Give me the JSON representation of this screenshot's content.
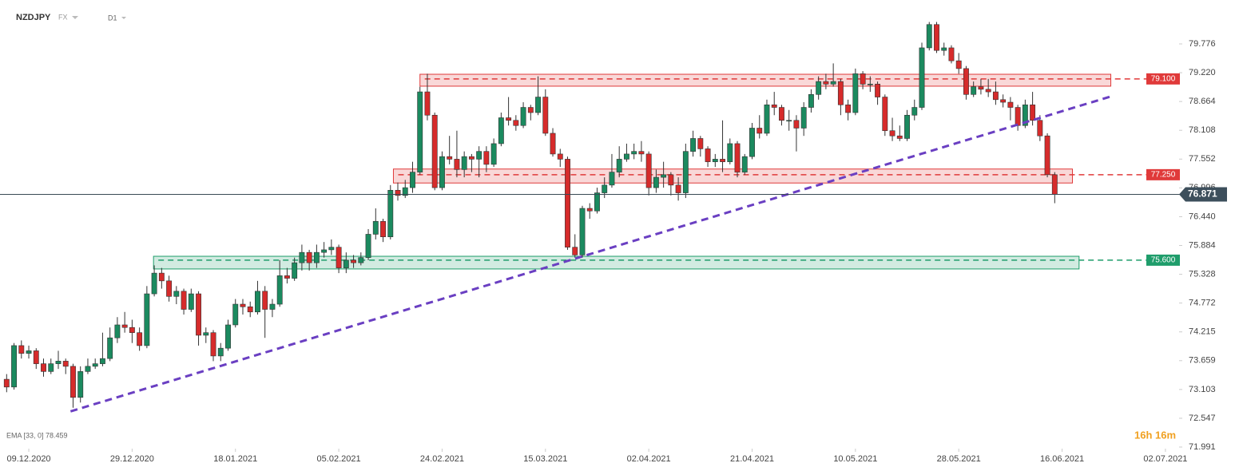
{
  "header": {
    "symbol": "NZDJPY",
    "market": "FX",
    "timeframe": "D1",
    "indicator": "EMA [33, 0] 78.459",
    "countdown": "16h 16m"
  },
  "chart_data": {
    "type": "candlestick",
    "series": [
      {
        "name": "NZDJPY",
        "up_color": "#1b8a5f",
        "down_color": "#d62b2b",
        "values": [
          [
            73.3,
            73.4,
            73.05,
            73.15
          ],
          [
            73.15,
            74.0,
            73.1,
            73.95
          ],
          [
            73.95,
            74.05,
            73.7,
            73.8
          ],
          [
            73.8,
            73.95,
            73.7,
            73.85
          ],
          [
            73.85,
            73.9,
            73.5,
            73.6
          ],
          [
            73.6,
            73.7,
            73.35,
            73.45
          ],
          [
            73.45,
            73.7,
            73.4,
            73.6
          ],
          [
            73.6,
            73.85,
            73.5,
            73.65
          ],
          [
            73.65,
            73.7,
            73.4,
            73.55
          ],
          [
            73.55,
            73.6,
            72.75,
            72.95
          ],
          [
            72.95,
            73.55,
            72.85,
            73.45
          ],
          [
            73.45,
            73.7,
            73.4,
            73.55
          ],
          [
            73.55,
            73.7,
            73.5,
            73.6
          ],
          [
            73.6,
            74.2,
            73.55,
            73.7
          ],
          [
            73.7,
            74.3,
            73.65,
            74.1
          ],
          [
            74.1,
            74.5,
            74.0,
            74.35
          ],
          [
            74.35,
            74.6,
            74.2,
            74.3
          ],
          [
            74.3,
            74.45,
            74.0,
            74.2
          ],
          [
            74.2,
            74.3,
            73.85,
            73.95
          ],
          [
            73.95,
            75.1,
            73.9,
            74.95
          ],
          [
            74.95,
            75.5,
            74.9,
            75.35
          ],
          [
            75.35,
            75.45,
            75.05,
            75.2
          ],
          [
            75.2,
            75.3,
            74.8,
            74.9
          ],
          [
            74.9,
            75.1,
            74.75,
            75.0
          ],
          [
            75.0,
            75.05,
            74.55,
            74.65
          ],
          [
            74.65,
            75.05,
            74.6,
            74.95
          ],
          [
            74.95,
            75.0,
            73.95,
            74.15
          ],
          [
            74.15,
            74.3,
            74.0,
            74.2
          ],
          [
            74.2,
            74.25,
            73.65,
            73.75
          ],
          [
            73.75,
            74.0,
            73.65,
            73.9
          ],
          [
            73.9,
            74.45,
            73.85,
            74.35
          ],
          [
            74.35,
            74.85,
            74.3,
            74.75
          ],
          [
            74.75,
            74.85,
            74.55,
            74.7
          ],
          [
            74.7,
            74.8,
            74.5,
            74.6
          ],
          [
            74.6,
            75.2,
            74.55,
            75.0
          ],
          [
            75.0,
            75.1,
            74.1,
            74.65
          ],
          [
            74.65,
            74.85,
            74.5,
            74.75
          ],
          [
            74.75,
            75.6,
            74.7,
            75.3
          ],
          [
            75.3,
            75.45,
            75.15,
            75.25
          ],
          [
            75.25,
            75.65,
            75.2,
            75.55
          ],
          [
            75.55,
            75.9,
            75.4,
            75.75
          ],
          [
            75.75,
            75.8,
            75.4,
            75.55
          ],
          [
            75.55,
            75.9,
            75.45,
            75.75
          ],
          [
            75.75,
            75.95,
            75.65,
            75.8
          ],
          [
            75.8,
            76.0,
            75.7,
            75.85
          ],
          [
            75.85,
            75.9,
            75.35,
            75.45
          ],
          [
            75.45,
            75.75,
            75.35,
            75.6
          ],
          [
            75.6,
            75.7,
            75.45,
            75.55
          ],
          [
            75.55,
            75.75,
            75.5,
            75.65
          ],
          [
            75.65,
            76.2,
            75.6,
            76.1
          ],
          [
            76.1,
            76.6,
            76.0,
            76.35
          ],
          [
            76.35,
            76.4,
            75.95,
            76.05
          ],
          [
            76.05,
            77.05,
            76.0,
            76.95
          ],
          [
            76.95,
            77.1,
            76.75,
            76.85
          ],
          [
            76.85,
            77.15,
            76.8,
            77.0
          ],
          [
            77.0,
            77.5,
            76.9,
            77.3
          ],
          [
            77.3,
            78.95,
            77.25,
            78.85
          ],
          [
            78.85,
            79.2,
            78.3,
            78.4
          ],
          [
            78.4,
            78.45,
            76.95,
            77.0
          ],
          [
            77.0,
            77.7,
            76.95,
            77.6
          ],
          [
            77.6,
            78.0,
            77.45,
            77.55
          ],
          [
            77.55,
            78.1,
            77.2,
            77.35
          ],
          [
            77.35,
            77.7,
            77.2,
            77.6
          ],
          [
            77.6,
            77.65,
            77.3,
            77.55
          ],
          [
            77.55,
            77.8,
            77.2,
            77.7
          ],
          [
            77.7,
            77.8,
            77.3,
            77.45
          ],
          [
            77.45,
            77.95,
            77.4,
            77.85
          ],
          [
            77.85,
            78.45,
            77.8,
            78.35
          ],
          [
            78.35,
            78.75,
            78.2,
            78.3
          ],
          [
            78.3,
            78.4,
            78.1,
            78.2
          ],
          [
            78.2,
            78.65,
            78.15,
            78.55
          ],
          [
            78.55,
            78.6,
            78.3,
            78.45
          ],
          [
            78.45,
            79.15,
            78.4,
            78.75
          ],
          [
            78.75,
            78.9,
            78.0,
            78.05
          ],
          [
            78.05,
            78.15,
            77.6,
            77.65
          ],
          [
            77.65,
            77.75,
            77.4,
            77.55
          ],
          [
            77.55,
            77.6,
            75.8,
            75.85
          ],
          [
            75.85,
            76.1,
            75.65,
            75.7
          ],
          [
            75.7,
            76.65,
            75.65,
            76.6
          ],
          [
            76.6,
            76.7,
            76.4,
            76.55
          ],
          [
            76.55,
            77.0,
            76.5,
            76.9
          ],
          [
            76.9,
            77.2,
            76.8,
            77.05
          ],
          [
            77.05,
            77.65,
            77.0,
            77.3
          ],
          [
            77.3,
            77.8,
            77.2,
            77.55
          ],
          [
            77.55,
            77.85,
            77.5,
            77.65
          ],
          [
            77.65,
            77.85,
            77.55,
            77.7
          ],
          [
            77.7,
            77.9,
            77.5,
            77.65
          ],
          [
            77.65,
            77.7,
            76.85,
            77.0
          ],
          [
            77.0,
            77.35,
            76.9,
            77.2
          ],
          [
            77.2,
            77.5,
            77.0,
            77.25
          ],
          [
            77.25,
            77.3,
            76.85,
            77.05
          ],
          [
            77.05,
            77.2,
            76.75,
            76.9
          ],
          [
            76.9,
            77.85,
            76.8,
            77.7
          ],
          [
            77.7,
            78.1,
            77.6,
            77.95
          ],
          [
            77.95,
            78.0,
            77.6,
            77.75
          ],
          [
            77.75,
            77.8,
            77.4,
            77.5
          ],
          [
            77.5,
            77.65,
            77.4,
            77.55
          ],
          [
            77.55,
            78.3,
            77.3,
            77.5
          ],
          [
            77.5,
            77.95,
            77.45,
            77.85
          ],
          [
            77.85,
            77.9,
            77.2,
            77.3
          ],
          [
            77.3,
            77.65,
            77.25,
            77.6
          ],
          [
            77.6,
            78.25,
            77.55,
            78.15
          ],
          [
            78.15,
            78.4,
            77.95,
            78.05
          ],
          [
            78.05,
            78.7,
            78.0,
            78.6
          ],
          [
            78.6,
            78.85,
            78.4,
            78.55
          ],
          [
            78.55,
            78.6,
            78.2,
            78.3
          ],
          [
            78.3,
            78.5,
            78.1,
            78.3
          ],
          [
            78.3,
            78.4,
            77.7,
            78.15
          ],
          [
            78.15,
            78.65,
            78.0,
            78.55
          ],
          [
            78.55,
            78.9,
            78.45,
            78.8
          ],
          [
            78.8,
            79.15,
            78.7,
            79.05
          ],
          [
            79.05,
            79.2,
            78.9,
            79.0
          ],
          [
            79.0,
            79.4,
            78.95,
            79.05
          ],
          [
            79.05,
            79.1,
            78.4,
            78.6
          ],
          [
            78.6,
            78.7,
            78.3,
            78.45
          ],
          [
            78.45,
            79.3,
            78.4,
            79.2
          ],
          [
            79.2,
            79.25,
            78.9,
            79.0
          ],
          [
            79.0,
            79.15,
            78.85,
            79.0
          ],
          [
            79.0,
            79.05,
            78.6,
            78.75
          ],
          [
            78.75,
            78.8,
            78.0,
            78.1
          ],
          [
            78.1,
            78.35,
            77.9,
            78.0
          ],
          [
            78.0,
            78.2,
            77.9,
            77.95
          ],
          [
            77.95,
            78.5,
            77.9,
            78.4
          ],
          [
            78.4,
            78.7,
            78.3,
            78.55
          ],
          [
            78.55,
            79.8,
            78.5,
            79.7
          ],
          [
            79.7,
            80.2,
            79.65,
            80.15
          ],
          [
            80.15,
            80.2,
            79.6,
            79.65
          ],
          [
            79.65,
            79.8,
            79.55,
            79.7
          ],
          [
            79.7,
            79.75,
            79.4,
            79.45
          ],
          [
            79.45,
            79.6,
            79.2,
            79.3
          ],
          [
            79.3,
            79.35,
            78.7,
            78.8
          ],
          [
            78.8,
            79.05,
            78.75,
            78.95
          ],
          [
            78.95,
            79.1,
            78.8,
            78.9
          ],
          [
            78.9,
            79.1,
            78.75,
            78.85
          ],
          [
            78.85,
            79.05,
            78.6,
            78.7
          ],
          [
            78.7,
            78.8,
            78.55,
            78.65
          ],
          [
            78.65,
            78.75,
            78.3,
            78.55
          ],
          [
            78.55,
            78.6,
            78.1,
            78.2
          ],
          [
            78.2,
            78.7,
            78.15,
            78.6
          ],
          [
            78.6,
            78.85,
            78.2,
            78.3
          ],
          [
            78.3,
            78.4,
            77.9,
            78.0
          ],
          [
            78.0,
            78.05,
            77.2,
            77.25
          ],
          [
            77.25,
            77.3,
            76.7,
            76.87
          ]
        ]
      }
    ],
    "xlim": [
      -0.9,
      158.2
    ],
    "xticks": [
      {
        "value": 3,
        "label": "09.12.2020"
      },
      {
        "value": 17,
        "label": "29.12.2020"
      },
      {
        "value": 31,
        "label": "18.01.2021"
      },
      {
        "value": 45,
        "label": "05.02.2021"
      },
      {
        "value": 59,
        "label": "24.02.2021"
      },
      {
        "value": 73,
        "label": "15.03.2021"
      },
      {
        "value": 87,
        "label": "02.04.2021"
      },
      {
        "value": 101,
        "label": "21.04.2021"
      },
      {
        "value": 115,
        "label": "10.05.2021"
      },
      {
        "value": 129,
        "label": "28.05.2021"
      },
      {
        "value": 143,
        "label": "16.06.2021"
      },
      {
        "value": 157,
        "label": "02.07.2021"
      }
    ],
    "ylim": [
      71.991,
      80.624
    ],
    "yticks": [
      {
        "value": 79.776,
        "label": "79.776"
      },
      {
        "value": 79.22,
        "label": "79.220"
      },
      {
        "value": 78.664,
        "label": "78.664"
      },
      {
        "value": 78.108,
        "label": "78.108"
      },
      {
        "value": 77.552,
        "label": "77.552"
      },
      {
        "value": 76.996,
        "label": "76.996"
      },
      {
        "value": 76.44,
        "label": "76.440"
      },
      {
        "value": 75.884,
        "label": "75.884"
      },
      {
        "value": 75.328,
        "label": "75.328"
      },
      {
        "value": 74.772,
        "label": "74.772"
      },
      {
        "value": 74.215,
        "label": "74.215"
      },
      {
        "value": 73.659,
        "label": "73.659"
      },
      {
        "value": 73.103,
        "label": "73.103"
      },
      {
        "value": 72.547,
        "label": "72.547"
      },
      {
        "value": 71.991,
        "label": "71.991"
      }
    ],
    "zones": [
      {
        "start": 56,
        "end": 149.6,
        "low": 78.96,
        "high": 79.19,
        "level": {
          "value": 79.1,
          "label": "79.100"
        },
        "color": "#e03a3a"
      },
      {
        "start": 52.4,
        "end": 144.4,
        "low": 77.09,
        "high": 77.36,
        "level": {
          "value": 77.25,
          "label": "77.250"
        },
        "color": "#e03a3a"
      },
      {
        "start": 19.9,
        "end": 145.3,
        "low": 75.43,
        "high": 75.675,
        "level": {
          "value": 75.6,
          "label": "75.600"
        },
        "color": "#1f9d6b"
      }
    ],
    "trendline": {
      "x": [
        8.66,
        149.8
      ],
      "y": [
        72.68,
        78.77
      ],
      "color": "#6a3fc2"
    },
    "last_price": 76.871
  }
}
